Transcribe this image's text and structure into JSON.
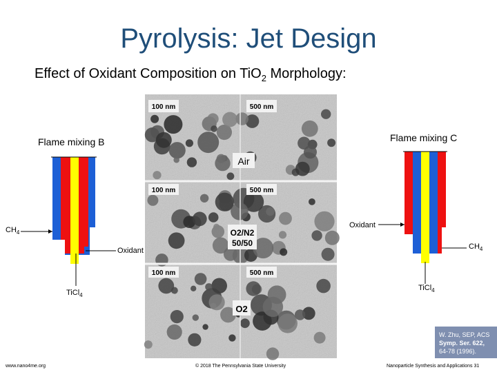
{
  "slide": {
    "title": "Pyrolysis: Jet Design",
    "subtitle_prefix": "Effect of Oxidant Composition on Ti",
    "subtitle_mid": "O",
    "subtitle_sub": "2",
    "subtitle_suffix": " Morphology:"
  },
  "micrographs": [
    {
      "scale_left": "100 nm",
      "scale_right": "500 nm",
      "condition": "Air"
    },
    {
      "scale_left": "100 nm",
      "scale_right": "500 nm",
      "condition_line1": "O2/N2",
      "condition_line2": "50/50"
    },
    {
      "scale_left": "100 nm",
      "scale_right": "500 nm",
      "condition": "O2"
    }
  ],
  "left_diagram": {
    "title": "Flame mixing B",
    "ch4_main": "CH",
    "ch4_sub": "4",
    "oxidant": "Oxidant",
    "ticl4_main": "TiCl",
    "ticl4_sub": "4"
  },
  "right_diagram": {
    "title": "Flame mixing C",
    "oxidant": "Oxidant",
    "ch4_main": "CH",
    "ch4_sub": "4",
    "ticl4_main": "TiCl",
    "ticl4_sub": "4"
  },
  "citation": [
    "W. Zhu, SEP, ACS",
    "Symp. Ser. 622,",
    "64-78 (1996)."
  ],
  "footer": {
    "left": "www.nano4me.org",
    "center": "© 2018 The Pennsylvania State University",
    "right": "Nanoparticle Synthesis and Applications 31"
  },
  "colors": {
    "title": "#1f4e79",
    "blue_tube": "#1d5fd6",
    "red_tube": "#ee1111",
    "yellow_tube": "#ffff00",
    "micrograph_bg": "#c9c9c9"
  }
}
